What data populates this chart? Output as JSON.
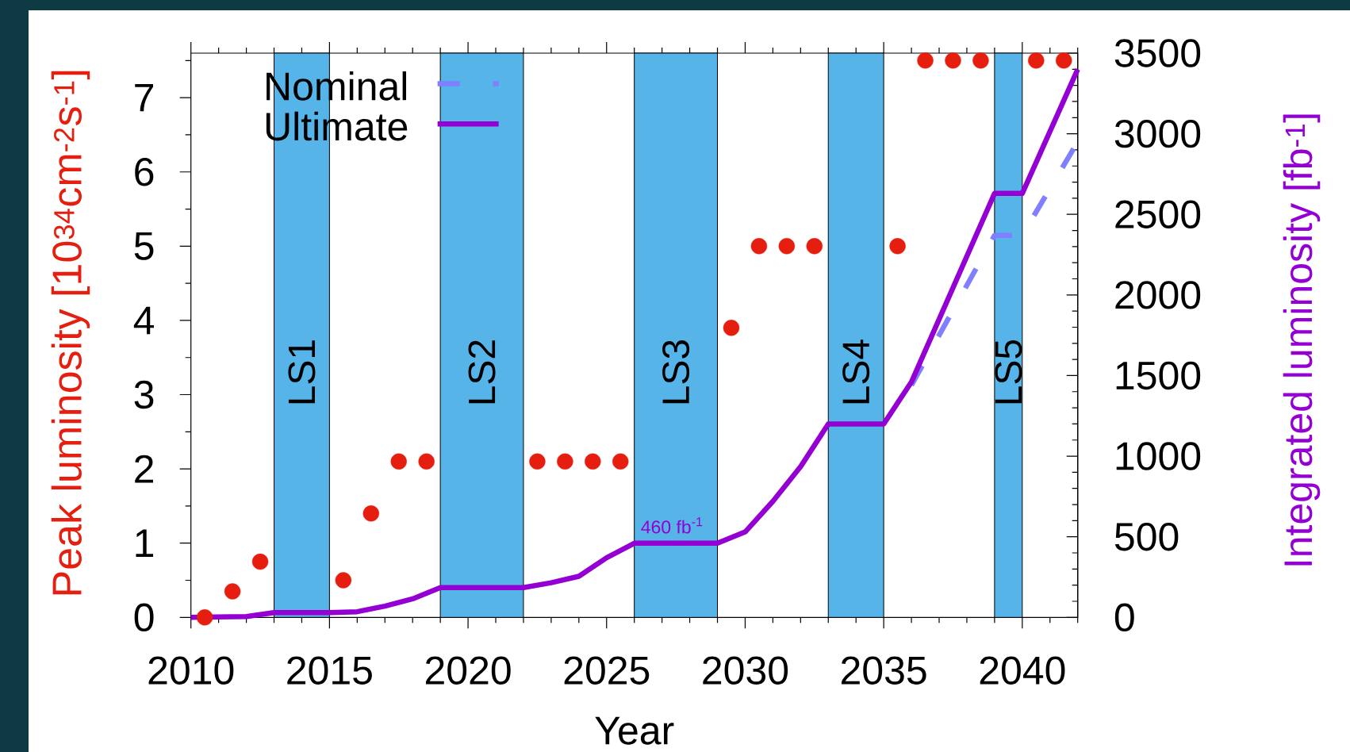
{
  "chart_data": {
    "type": "line",
    "xlabel": "Year",
    "ylabel": "Peak luminosity [10$^{34}$cm$^{-2}$s$^{-1}$]",
    "y2label": "Integrated luminosity [fb$^{-1}$]",
    "xlim": [
      2010,
      2042
    ],
    "xticks": [
      2010,
      {
        "value": 2011,
        "label": null
      },
      {
        "value": 2012,
        "label": null
      },
      {
        "value": 2013,
        "label": null
      },
      {
        "value": 2014,
        "label": null
      },
      2015,
      {
        "value": 2016,
        "label": null
      },
      {
        "value": 2017,
        "label": null
      },
      {
        "value": 2018,
        "label": null
      },
      {
        "value": 2019,
        "label": null
      },
      2020,
      {
        "value": 2021,
        "label": null
      },
      {
        "value": 2022,
        "label": null
      },
      {
        "value": 2023,
        "label": null
      },
      {
        "value": 2024,
        "label": null
      },
      2025,
      {
        "value": 2026,
        "label": null
      },
      {
        "value": 2027,
        "label": null
      },
      {
        "value": 2028,
        "label": null
      },
      {
        "value": 2029,
        "label": null
      },
      2030,
      {
        "value": 2031,
        "label": null
      },
      {
        "value": 2032,
        "label": null
      },
      {
        "value": 2033,
        "label": null
      },
      {
        "value": 2034,
        "label": null
      },
      2035,
      {
        "value": 2036,
        "label": null
      },
      {
        "value": 2037,
        "label": null
      },
      {
        "value": 2038,
        "label": null
      },
      {
        "value": 2039,
        "label": null
      },
      2040,
      {
        "value": 2041,
        "label": null
      },
      {
        "value": 2042,
        "label": null
      }
    ],
    "ylim": [
      0,
      7.6
    ],
    "yticks": [
      0,
      {
        "value": 0.5,
        "label": null
      },
      1,
      {
        "value": 1.5,
        "label": null
      },
      2,
      {
        "value": 2.5,
        "label": null
      },
      3,
      {
        "value": 3.5,
        "label": null
      },
      4,
      {
        "value": 4.5,
        "label": null
      },
      5,
      {
        "value": 5.5,
        "label": null
      },
      6,
      {
        "value": 6.5,
        "label": null
      },
      7,
      {
        "value": 7.5,
        "label": null
      }
    ],
    "y2lim": [
      0,
      3500
    ],
    "y2ticks": [
      0,
      {
        "value": 100,
        "label": null
      },
      {
        "value": 200,
        "label": null
      },
      {
        "value": 300,
        "label": null
      },
      {
        "value": 400,
        "label": null
      },
      500,
      {
        "value": 600,
        "label": null
      },
      {
        "value": 700,
        "label": null
      },
      {
        "value": 800,
        "label": null
      },
      {
        "value": 900,
        "label": null
      },
      1000,
      {
        "value": 1100,
        "label": null
      },
      {
        "value": 1200,
        "label": null
      },
      {
        "value": 1300,
        "label": null
      },
      {
        "value": 1400,
        "label": null
      },
      1500,
      {
        "value": 1600,
        "label": null
      },
      {
        "value": 1700,
        "label": null
      },
      {
        "value": 1800,
        "label": null
      },
      {
        "value": 1900,
        "label": null
      },
      2000,
      {
        "value": 2100,
        "label": null
      },
      {
        "value": 2200,
        "label": null
      },
      {
        "value": 2300,
        "label": null
      },
      {
        "value": 2400,
        "label": null
      },
      2500,
      {
        "value": 2600,
        "label": null
      },
      {
        "value": 2700,
        "label": null
      },
      {
        "value": 2800,
        "label": null
      },
      {
        "value": 2900,
        "label": null
      },
      3000,
      {
        "value": 3100,
        "label": null
      },
      {
        "value": 3200,
        "label": null
      },
      {
        "value": 3300,
        "label": null
      },
      {
        "value": 3400,
        "label": null
      },
      3500
    ],
    "series": [
      {
        "type": "scatter",
        "color": "#e51e10",
        "marker": "circle",
        "x": [
          2010.5,
          2011.5,
          2012.5,
          2015.5,
          2016.5,
          2017.5,
          2018.5,
          2022.5,
          2023.5,
          2024.5,
          2025.5,
          2029.5,
          2030.5,
          2031.5,
          2032.5,
          2035.5,
          2036.5,
          2037.5,
          2038.5,
          2040.5,
          2041.5
        ],
        "values": [
          0,
          0.35,
          0.75,
          0.5,
          1.4,
          2.1,
          2.1,
          2.1,
          2.1,
          2.1,
          2.1,
          3.9,
          5,
          5,
          5,
          5,
          7.5,
          7.5,
          7.5,
          7.5,
          7.5
        ]
      },
      {
        "name": "Nominal",
        "type": "line",
        "axis": "y2",
        "color": "#7f7fff",
        "marker": "none",
        "line_style": "dashed",
        "x": [
          2036,
          2039,
          2040,
          2042
        ],
        "values": [
          1440,
          2370,
          2370,
          2950
        ]
      },
      {
        "name": "Ultimate",
        "type": "line",
        "axis": "y2",
        "color": "#9400d3",
        "marker": "none",
        "line_style": "solid",
        "x": [
          2010,
          2012,
          2013,
          2015,
          2016,
          2017,
          2018,
          2019,
          2022,
          2023,
          2024,
          2025,
          2026,
          2029,
          2030,
          2031,
          2032,
          2033,
          2035,
          2036,
          2039,
          2040,
          2041,
          2042
        ],
        "values": [
          0,
          5,
          30,
          30,
          35,
          70,
          115,
          185,
          185,
          215,
          255,
          370,
          460,
          460,
          530,
          720,
          935,
          1200,
          1200,
          1460,
          2630,
          2630,
          3015,
          3400
        ]
      }
    ],
    "bands": [
      {
        "axis": "x",
        "from": 2013,
        "to": 2015,
        "label": "LS1",
        "color": "#56b4e9"
      },
      {
        "axis": "x",
        "from": 2019,
        "to": 2022,
        "label": "LS2",
        "color": "#56b4e9"
      },
      {
        "axis": "x",
        "from": 2026,
        "to": 2029,
        "label": "LS3",
        "color": "#56b4e9"
      },
      {
        "axis": "x",
        "from": 2033,
        "to": 2035,
        "label": "LS4",
        "color": "#56b4e9"
      },
      {
        "axis": "x",
        "from": 2039,
        "to": 2040,
        "label": "LS5",
        "color": "#56b4e9"
      }
    ],
    "annotations": [
      "460 fb$^{-1}$"
    ],
    "legend": "top left"
  }
}
